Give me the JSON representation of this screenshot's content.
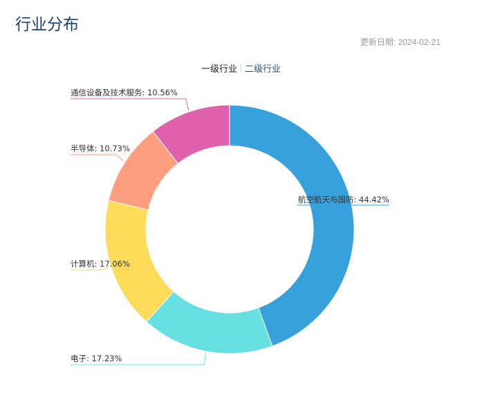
{
  "header": {
    "title": "行业分布",
    "update_label": "更新日期:",
    "update_date": "2024-02-21"
  },
  "tabs": [
    {
      "label": "一级行业",
      "active": true
    },
    {
      "label": "二级行业",
      "active": false
    }
  ],
  "chart_data": {
    "type": "pie",
    "donut": true,
    "start_angle_deg": 90,
    "direction": "clockwise",
    "slices": [
      {
        "name": "航空航天与国防",
        "value": 44.42,
        "label": "航空航天与国防: 44.42%",
        "color": "#38a0da"
      },
      {
        "name": "电子",
        "value": 17.23,
        "label": "电子: 17.23%",
        "color": "#67e0e3"
      },
      {
        "name": "计算机",
        "value": 17.06,
        "label": "计算机: 17.06%",
        "color": "#ffdb5c"
      },
      {
        "name": "半导体",
        "value": 10.73,
        "label": "半导体: 10.73%",
        "color": "#ff9f7f"
      },
      {
        "name": "通信设备及技术服务",
        "value": 10.56,
        "label": "通信设备及技术服务: 10.56%",
        "color": "#e062ae"
      }
    ]
  }
}
